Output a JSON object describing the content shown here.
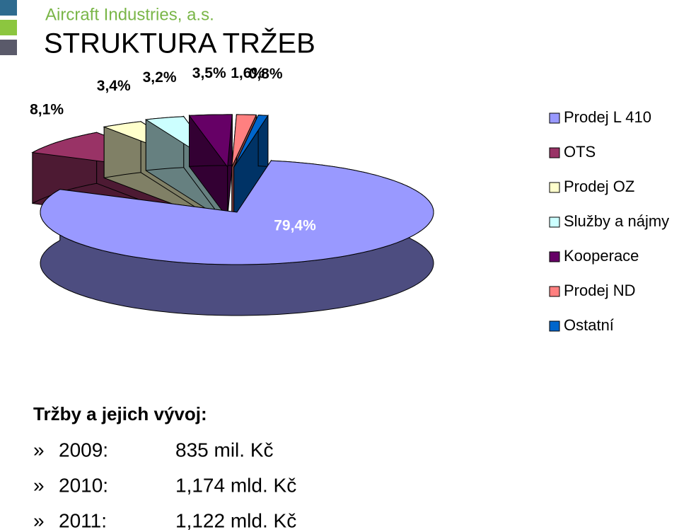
{
  "header": {
    "company": "Aircraft Industries, a.s.",
    "title": "STRUKTURA TRŽEB"
  },
  "chart_data": {
    "type": "pie",
    "categories": [
      "Prodej L 410",
      "OTS",
      "Prodej OZ",
      "Služby a nájmy",
      "Kooperace",
      "Prodej ND",
      "Ostatní"
    ],
    "values": [
      79.4,
      8.1,
      3.4,
      3.2,
      3.5,
      1.6,
      0.8
    ],
    "value_labels": [
      "79,4%",
      "8,1%",
      "3,4%",
      "3,2%",
      "3,5%",
      "1,6%",
      "0,8%"
    ],
    "colors": [
      "#9999ff",
      "#993366",
      "#ffffcc",
      "#ccffff",
      "#660066",
      "#ff8080",
      "#0066cc"
    ],
    "legend": "right"
  },
  "notes": {
    "heading": "Tržby a jejich vývoj:",
    "rows": [
      {
        "bullet": "»",
        "year": "2009:",
        "amount": "835 mil. Kč"
      },
      {
        "bullet": "»",
        "year": "2010:",
        "amount": "1,174 mld. Kč"
      },
      {
        "bullet": "»",
        "year": "2011:",
        "amount": "1,122 mld. Kč"
      }
    ]
  }
}
